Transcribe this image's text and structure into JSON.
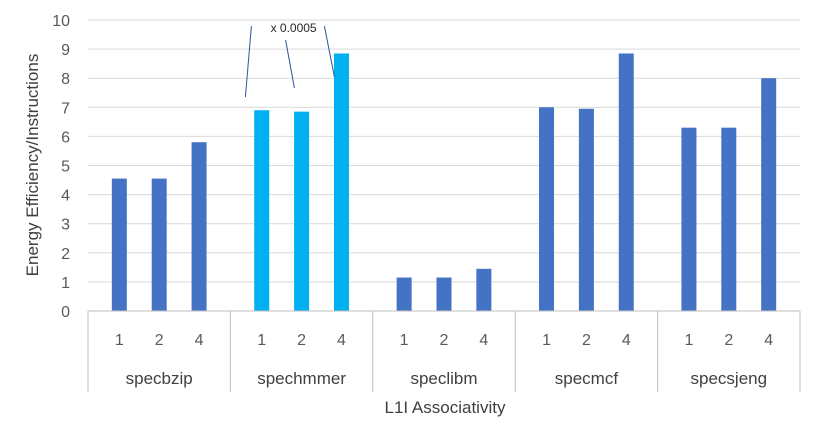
{
  "chart_data": {
    "type": "bar",
    "title": "",
    "xlabel": "L1I Associativity",
    "ylabel": "Energy Efficiency/Instructions",
    "ylim": [
      0,
      10
    ],
    "yticks": [
      0,
      1,
      2,
      3,
      4,
      5,
      6,
      7,
      8,
      9,
      10
    ],
    "grid": true,
    "groups": [
      {
        "name": "specbzip",
        "categories": [
          "1",
          "2",
          "4"
        ],
        "values": [
          4.55,
          4.55,
          5.8
        ],
        "color": "#4472c4"
      },
      {
        "name": "spechmmer",
        "categories": [
          "1",
          "2",
          "4"
        ],
        "values": [
          6.9,
          6.85,
          8.85
        ],
        "color": "#00b0f0"
      },
      {
        "name": "speclibm",
        "categories": [
          "1",
          "2",
          "4"
        ],
        "values": [
          1.15,
          1.15,
          1.45
        ],
        "color": "#4472c4"
      },
      {
        "name": "specmcf",
        "categories": [
          "1",
          "2",
          "4"
        ],
        "values": [
          7.0,
          6.95,
          8.85
        ],
        "color": "#4472c4"
      },
      {
        "name": "specsjeng",
        "categories": [
          "1",
          "2",
          "4"
        ],
        "values": [
          6.3,
          6.3,
          8.0
        ],
        "color": "#4472c4"
      }
    ],
    "annotation": {
      "text": "x 0.0005",
      "group": "spechmmer"
    }
  }
}
